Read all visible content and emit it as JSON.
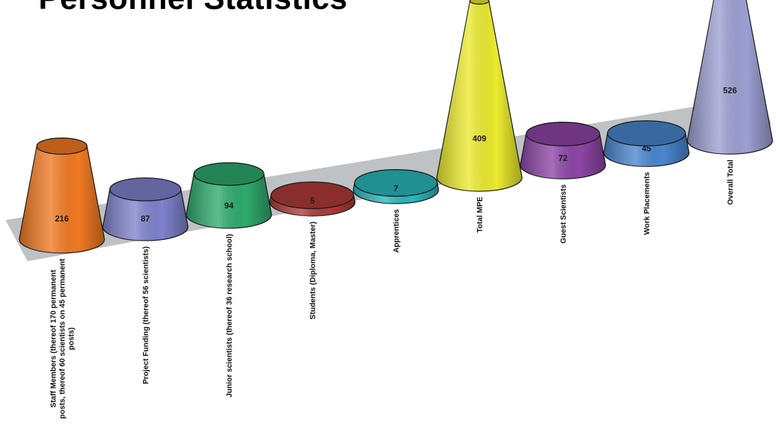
{
  "title": "Personnel Statistics",
  "chart_data": {
    "type": "bar",
    "shape": "3d-cone",
    "title": "Personnel Statistics",
    "categories": [
      [
        "Staff Members (thereof 170 permanent",
        "posts, thereof 60 scientists on 45 permanent",
        "posts)"
      ],
      [
        "Project Funding (thereof 56 scientists)"
      ],
      [
        "Junior scientists (thereof 36 research school)"
      ],
      [
        "Students (Diploma, Master)"
      ],
      [
        "Apprentices"
      ],
      [
        "Total MPE"
      ],
      [
        "Guest Scientists"
      ],
      [
        "Work Placements"
      ],
      [
        "Overall Total"
      ]
    ],
    "values": [
      216,
      87,
      94,
      5,
      7,
      409,
      72,
      45,
      526
    ],
    "value_labels": [
      "216",
      "87",
      "94",
      "5",
      "7",
      "409",
      "72",
      "45",
      "526"
    ],
    "ylim": [
      0,
      526
    ],
    "colors": [
      "#f07a22",
      "#7f82cc",
      "#2eaa6e",
      "#b13a3a",
      "#2ab9bd",
      "#eaea2e",
      "#8d45a6",
      "#4a86cf",
      "#9c9fd2"
    ],
    "grid": false,
    "legend": "none"
  }
}
